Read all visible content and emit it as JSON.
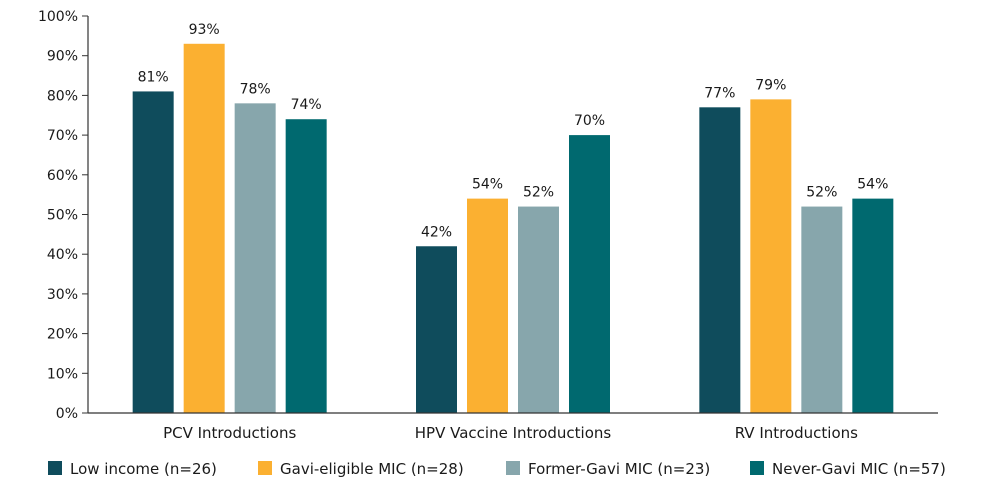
{
  "chart_data": {
    "type": "bar",
    "title": "",
    "xlabel": "",
    "ylabel": "",
    "ylim": [
      0,
      100
    ],
    "yticks": [
      0,
      10,
      20,
      30,
      40,
      50,
      60,
      70,
      80,
      90,
      100
    ],
    "ytick_suffix": "%",
    "value_suffix": "%",
    "grid": false,
    "legend_position": "bottom",
    "categories": [
      "PCV Introductions",
      "HPV Vaccine Introductions",
      "RV Introductions"
    ],
    "series": [
      {
        "name": "Low income (n=26)",
        "color": "#0f4c5c",
        "values": [
          81,
          42,
          77
        ]
      },
      {
        "name": "Gavi-eligible MIC (n=28)",
        "color": "#fbb031",
        "values": [
          93,
          54,
          79
        ]
      },
      {
        "name": "Former-Gavi MIC (n=23)",
        "color": "#87a6ac",
        "values": [
          78,
          52,
          52
        ]
      },
      {
        "name": "Never-Gavi MIC (n=57)",
        "color": "#00696f",
        "values": [
          74,
          70,
          54
        ]
      }
    ]
  }
}
